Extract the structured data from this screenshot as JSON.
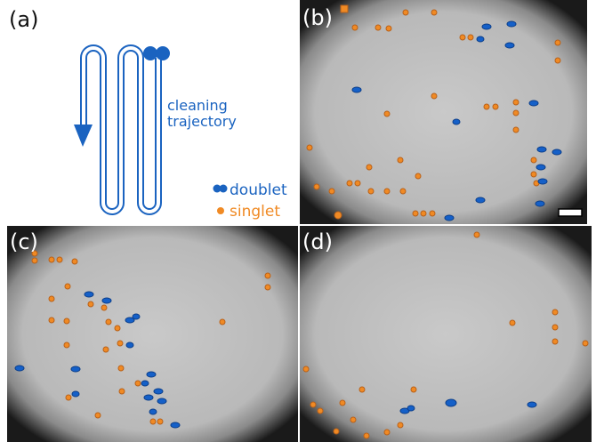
{
  "panels": {
    "a": {
      "label": "(a)",
      "trajectory_text": [
        "cleaning",
        "trajectory"
      ],
      "legend": {
        "doublet": "doublet",
        "singlet": "singlet"
      }
    },
    "b": {
      "label": "(b)"
    },
    "c": {
      "label": "(c)"
    },
    "d": {
      "label": "(d)"
    }
  }
}
